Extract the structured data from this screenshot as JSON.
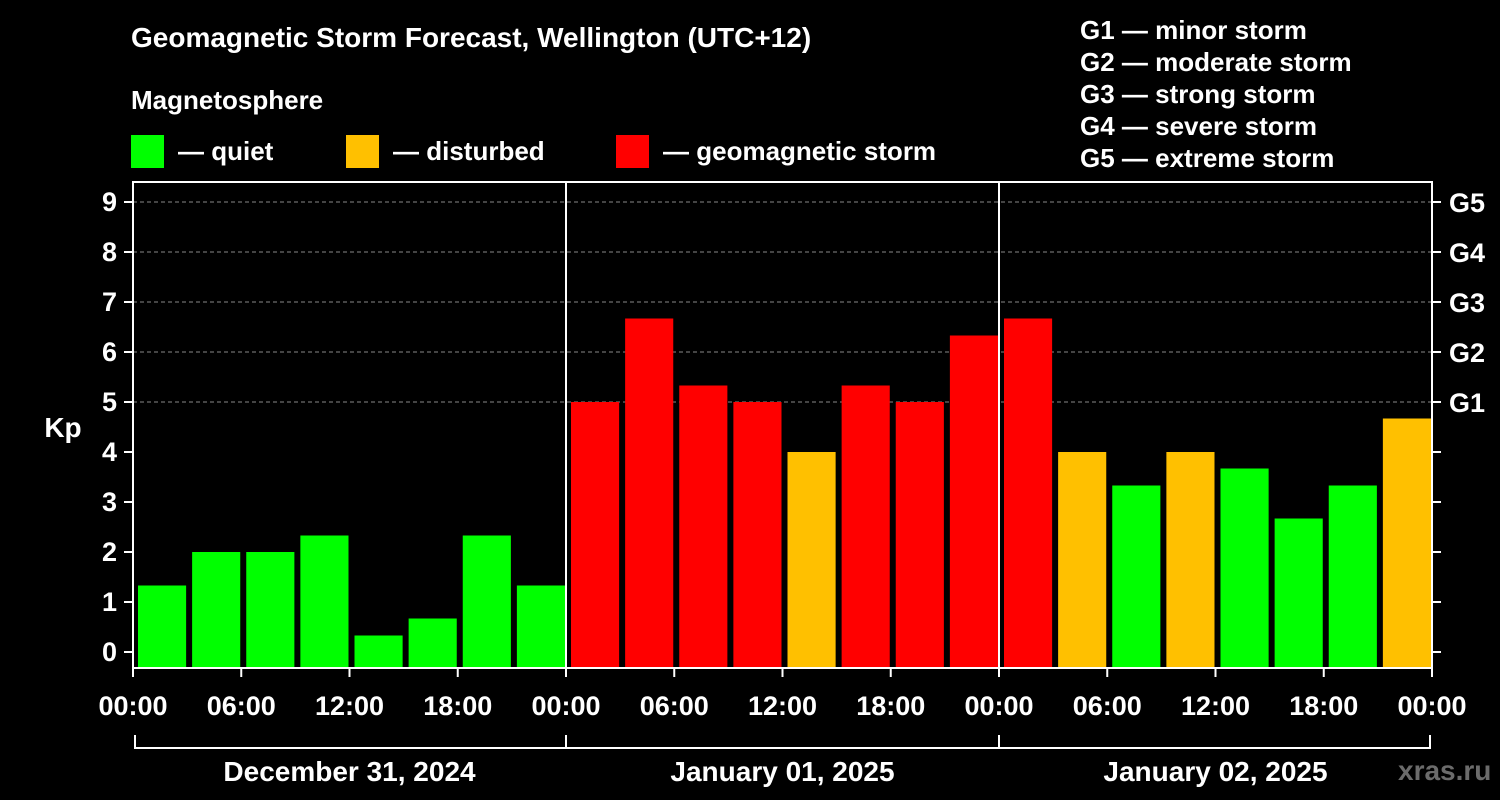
{
  "chart_data": {
    "type": "bar",
    "title": "Geomagnetic Storm Forecast, Wellington (UTC+12)",
    "subtitle": "Magnetosphere",
    "ylabel": "Kp",
    "ylim": [
      0,
      9
    ],
    "yticks": [
      "0",
      "1",
      "2",
      "3",
      "4",
      "5",
      "6",
      "7",
      "8",
      "9"
    ],
    "right_ticks": [
      {
        "kp": 5,
        "label": "G1"
      },
      {
        "kp": 6,
        "label": "G2"
      },
      {
        "kp": 7,
        "label": "G3"
      },
      {
        "kp": 8,
        "label": "G4"
      },
      {
        "kp": 9,
        "label": "G5"
      }
    ],
    "grid_levels": [
      5,
      6,
      7,
      8,
      9
    ],
    "legend": [
      {
        "label": "— quiet",
        "color": "#00ff00"
      },
      {
        "label": "— disturbed",
        "color": "#ffc000"
      },
      {
        "label": "— geomagnetic storm",
        "color": "#ff0000"
      }
    ],
    "storm_scale": [
      "G1 — minor storm",
      "G2 — moderate storm",
      "G3 — strong storm",
      "G4 — severe storm",
      "G5 — extreme storm"
    ],
    "xticks": [
      "00:00",
      "06:00",
      "12:00",
      "18:00",
      "00:00",
      "06:00",
      "12:00",
      "18:00",
      "00:00",
      "06:00",
      "12:00",
      "18:00",
      "00:00"
    ],
    "days": [
      "December 31, 2024",
      "January 01, 2025",
      "January 02, 2025"
    ],
    "values": [
      1.33,
      2.0,
      2.0,
      2.33,
      0.33,
      0.67,
      2.33,
      1.33,
      5.0,
      6.67,
      5.33,
      5.0,
      4.0,
      5.33,
      5.0,
      6.33,
      6.67,
      4.0,
      3.33,
      4.0,
      3.67,
      2.67,
      3.33,
      4.67
    ],
    "colors": {
      "quiet": "#00ff00",
      "disturbed": "#ffc000",
      "storm": "#ff0000",
      "grid": "#888888",
      "axis": "#ffffff"
    }
  },
  "watermark": "xras.ru"
}
